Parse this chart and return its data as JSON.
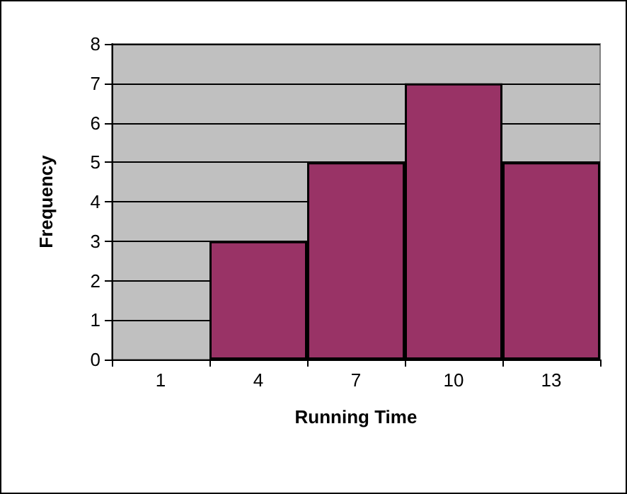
{
  "chart_data": {
    "type": "bar",
    "xlabel": "Running Time",
    "ylabel": "Frequency",
    "categories": [
      "1",
      "4",
      "7",
      "10",
      "13"
    ],
    "values": [
      0,
      3,
      5,
      7,
      5
    ],
    "color": "#993366",
    "ylim": [
      0,
      8
    ],
    "yticks": [
      0,
      1,
      2,
      3,
      4,
      5,
      6,
      7,
      8
    ],
    "grid": "y"
  }
}
